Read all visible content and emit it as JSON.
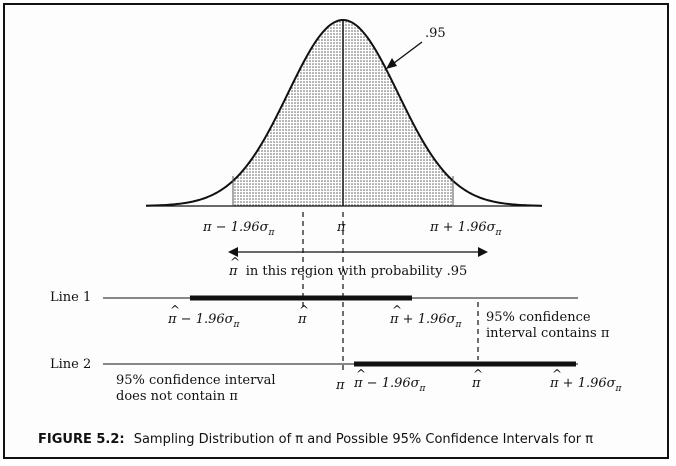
{
  "figure": {
    "curve_label": ".95",
    "axis_left": "π − 1.96σ",
    "axis_center": "π",
    "axis_right": "π + 1.96σ",
    "region_text": "in this region with probability .95",
    "pi_hat": "π",
    "pi_hat_sub": "π",
    "line1": {
      "label": "Line 1",
      "lower": "π − 1.96σ",
      "center": "π",
      "upper": "π + 1.96σ",
      "note_line1": "95% confidence",
      "note_line2": "interval contains π"
    },
    "line2": {
      "label": "Line 2",
      "pi": "π",
      "lower": "π − 1.96σ",
      "center": "π",
      "upper": "π + 1.96σ",
      "note_line1": "95% confidence interval",
      "note_line2": "does not contain π"
    }
  },
  "caption": {
    "prefix": "FIGURE 5.2:",
    "text": "Sampling Distribution of π and Possible 95% Confidence Intervals for π"
  }
}
